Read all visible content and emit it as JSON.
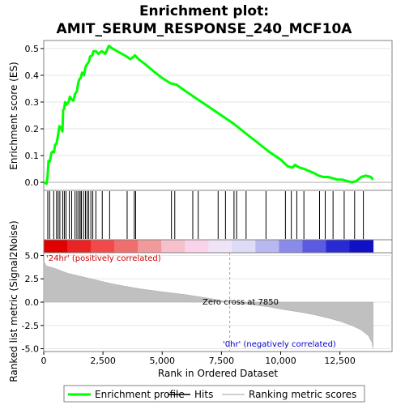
{
  "chart_data": {
    "type": "line",
    "title_line1": "Enrichment plot:",
    "title_line2": "AMIT_SERUM_RESPONSE_240_MCF10A",
    "xlabel": "Rank in Ordered Dataset",
    "xlim": [
      0,
      14700
    ],
    "x_ticks": [
      0,
      2500,
      5000,
      7500,
      10000,
      12500
    ],
    "x_tick_labels": [
      "0",
      "2,500",
      "5,000",
      "7,500",
      "10,000",
      "12,500"
    ],
    "es_panel": {
      "ylabel": "Enrichment score (ES)",
      "ylim": [
        -0.03,
        0.53
      ],
      "y_ticks": [
        0.0,
        0.1,
        0.2,
        0.3,
        0.4,
        0.5
      ],
      "y_tick_labels": [
        "0.0",
        "0.1",
        "0.2",
        "0.3",
        "0.4",
        "0.5"
      ],
      "line_color": "#00ff00",
      "es_curve": [
        [
          0,
          0.0
        ],
        [
          120,
          -0.005
        ],
        [
          160,
          0.02
        ],
        [
          200,
          0.08
        ],
        [
          260,
          0.078
        ],
        [
          320,
          0.11
        ],
        [
          380,
          0.115
        ],
        [
          430,
          0.112
        ],
        [
          480,
          0.14
        ],
        [
          540,
          0.145
        ],
        [
          600,
          0.175
        ],
        [
          660,
          0.21
        ],
        [
          720,
          0.205
        ],
        [
          790,
          0.19
        ],
        [
          820,
          0.27
        ],
        [
          860,
          0.275
        ],
        [
          900,
          0.3
        ],
        [
          960,
          0.29
        ],
        [
          1050,
          0.3
        ],
        [
          1100,
          0.32
        ],
        [
          1180,
          0.31
        ],
        [
          1250,
          0.305
        ],
        [
          1320,
          0.33
        ],
        [
          1400,
          0.34
        ],
        [
          1450,
          0.37
        ],
        [
          1500,
          0.385
        ],
        [
          1560,
          0.39
        ],
        [
          1620,
          0.41
        ],
        [
          1700,
          0.4
        ],
        [
          1760,
          0.43
        ],
        [
          1820,
          0.44
        ],
        [
          1900,
          0.45
        ],
        [
          1960,
          0.47
        ],
        [
          2050,
          0.475
        ],
        [
          2100,
          0.49
        ],
        [
          2200,
          0.49
        ],
        [
          2300,
          0.48
        ],
        [
          2450,
          0.49
        ],
        [
          2600,
          0.48
        ],
        [
          2750,
          0.51
        ],
        [
          2900,
          0.5
        ],
        [
          3100,
          0.49
        ],
        [
          3300,
          0.48
        ],
        [
          3500,
          0.47
        ],
        [
          3650,
          0.46
        ],
        [
          3800,
          0.47
        ],
        [
          3850,
          0.475
        ],
        [
          4000,
          0.46
        ],
        [
          4300,
          0.44
        ],
        [
          4700,
          0.41
        ],
        [
          5000,
          0.39
        ],
        [
          5350,
          0.37
        ],
        [
          5600,
          0.365
        ],
        [
          6000,
          0.34
        ],
        [
          6500,
          0.31
        ],
        [
          7000,
          0.28
        ],
        [
          7500,
          0.25
        ],
        [
          8000,
          0.22
        ],
        [
          8500,
          0.185
        ],
        [
          9000,
          0.15
        ],
        [
          9500,
          0.115
        ],
        [
          10000,
          0.085
        ],
        [
          10300,
          0.06
        ],
        [
          10500,
          0.055
        ],
        [
          10600,
          0.065
        ],
        [
          10800,
          0.055
        ],
        [
          11000,
          0.05
        ],
        [
          11200,
          0.042
        ],
        [
          11400,
          0.035
        ],
        [
          11600,
          0.025
        ],
        [
          11800,
          0.02
        ],
        [
          12000,
          0.02
        ],
        [
          12200,
          0.015
        ],
        [
          12400,
          0.01
        ],
        [
          12600,
          0.01
        ],
        [
          12800,
          0.005
        ],
        [
          13000,
          0.0
        ],
        [
          13200,
          0.005
        ],
        [
          13400,
          0.02
        ],
        [
          13600,
          0.025
        ],
        [
          13800,
          0.02
        ],
        [
          13900,
          0.01
        ]
      ]
    },
    "hits": [
      170,
      250,
      420,
      540,
      610,
      680,
      800,
      870,
      940,
      1080,
      1180,
      1320,
      1400,
      1480,
      1540,
      1590,
      1680,
      1760,
      1830,
      1900,
      1990,
      2070,
      2200,
      2470,
      2780,
      3520,
      3820,
      3880,
      5390,
      5530,
      6290,
      6520,
      7360,
      7670,
      8030,
      8140,
      8540,
      9380,
      10200,
      10450,
      10680,
      10980,
      11640,
      11880,
      12210,
      12680,
      13120,
      13490
    ],
    "metric_panel": {
      "ylabel": "Ranked list metric (Signal2Noise)",
      "ylim": [
        -5.3,
        5.3
      ],
      "y_ticks": [
        5.0,
        2.5,
        0.0,
        -2.5,
        -5.0
      ],
      "y_tick_labels": [
        "5.0",
        "2.5",
        "0.0",
        "-2.5",
        "-5.0"
      ],
      "fill_color": "#c0c0c0",
      "metric_curve": [
        [
          0,
          4.4
        ],
        [
          100,
          3.9
        ],
        [
          500,
          3.6
        ],
        [
          1000,
          3.1
        ],
        [
          1500,
          2.8
        ],
        [
          2000,
          2.5
        ],
        [
          2500,
          2.2
        ],
        [
          3000,
          1.9
        ],
        [
          4000,
          1.45
        ],
        [
          5000,
          1.1
        ],
        [
          6000,
          0.8
        ],
        [
          7000,
          0.4
        ],
        [
          7850,
          0.0
        ],
        [
          8500,
          -0.2
        ],
        [
          9000,
          -0.35
        ],
        [
          9500,
          -0.5
        ],
        [
          10000,
          -0.75
        ],
        [
          10500,
          -0.95
        ],
        [
          11000,
          -1.15
        ],
        [
          11500,
          -1.4
        ],
        [
          12000,
          -1.7
        ],
        [
          12500,
          -2.05
        ],
        [
          13000,
          -2.5
        ],
        [
          13400,
          -3.0
        ],
        [
          13700,
          -3.6
        ],
        [
          13850,
          -4.3
        ],
        [
          13900,
          -5.0
        ]
      ],
      "pos_label": "'24hr' (positively correlated)",
      "neg_label": "'0hr' (negatively correlated)",
      "zero_cross_label": "Zero cross at 7850",
      "zero_cross_x": 7850,
      "pos_label_color": "#cc0000",
      "neg_label_color": "#0000cc"
    },
    "heatmap_colors": [
      "#e00000",
      "#ea2424",
      "#f24a4a",
      "#f06e6e",
      "#f29a9a",
      "#f6c0cc",
      "#fad2ea",
      "#eee4f6",
      "#dcdcf6",
      "#b8b8f0",
      "#8a8aea",
      "#5a5ae2",
      "#2a2ad4",
      "#1010c4"
    ],
    "legend": [
      {
        "name": "Enrichment profile",
        "color": "#00ff00",
        "style": "line"
      },
      {
        "name": "Hits",
        "color": "#000000",
        "style": "line"
      },
      {
        "name": "Ranking metric scores",
        "color": "#c0c0c0",
        "style": "line"
      }
    ]
  }
}
